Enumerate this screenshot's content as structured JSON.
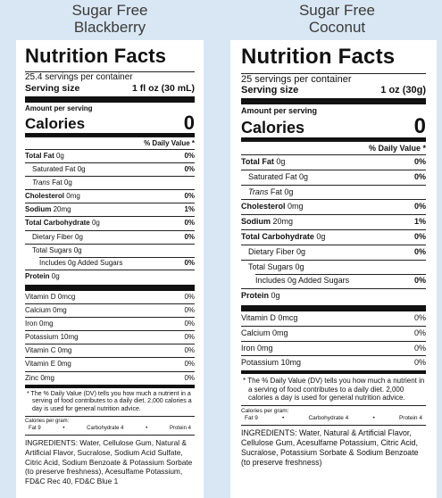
{
  "left": {
    "heading": "Sugar Free\nBlackberry",
    "heading_line1": "Sugar Free",
    "heading_line2": "Blackberry",
    "title": "Nutrition Facts",
    "servings": "25.4 servings per container",
    "serving_size_label": "Serving size",
    "serving_size_value": "1 fl oz (30 mL)",
    "amount_per_serving": "Amount per serving",
    "calories_label": "Calories",
    "calories_value": "0",
    "dv_header": "% Daily Value *",
    "rows": [
      {
        "bold": "Total Fat",
        "label": " 0g",
        "value": "0%"
      },
      {
        "label": "Saturated Fat 0g",
        "value": "0%"
      },
      {
        "italic": "Trans",
        "label": " Fat 0g",
        "value": ""
      },
      {
        "bold": "Cholesterol",
        "label": " 0mg",
        "value": "0%"
      },
      {
        "bold": "Sodium",
        "label": " 20mg",
        "value": "1%"
      },
      {
        "bold": "Total Carbohydrate",
        "label": " 0g",
        "value": "0%"
      },
      {
        "label": "Dietary Fiber 0g",
        "value": "0%"
      },
      {
        "label": "Total Sugars 0g",
        "value": ""
      },
      {
        "label": "Includes 0g Added Sugars",
        "value": "0%"
      },
      {
        "bold": "Protein",
        "label": " 0g",
        "value": ""
      }
    ],
    "vitamins": [
      {
        "label": "Vitamin D 0mcg",
        "value": "0%"
      },
      {
        "label": "Calcium 0mg",
        "value": "0%"
      },
      {
        "label": "Iron 0mg",
        "value": "0%"
      },
      {
        "label": "Potassium 10mg",
        "value": "0%"
      },
      {
        "label": "Vitamin C 0mg",
        "value": "0%"
      },
      {
        "label": "Vitamin E 0mg",
        "value": "0%"
      },
      {
        "label": "Zinc 0mg",
        "value": "0%"
      }
    ],
    "footnote": "* The % Daily Value (DV) tells you how much a nutrient in a serving of food contributes to a daily diet. 2,000 calories a day is used for general nutrition advice.",
    "calories_per_gram": "Calories per gram:",
    "fat_per_gram": "Fat 9",
    "carb_per_gram": "Carbohydrate 4",
    "protein_per_gram": "Protein 4",
    "ingredients": "INGREDIENTS: Water, Cellulose Gum, Natural & Artificial Flavor, Sucralose, Sodium Acid Sulfate, Citric Acid, Sodium Benzoate & Potassium Sorbate (to preserve freshness), Acesulfame Potassium, FD&C Rec 40, FD&C Blue 1"
  },
  "right": {
    "heading_line1": "Sugar Free",
    "heading_line2": "Coconut",
    "title": "Nutrition Facts",
    "servings": "25 servings per container",
    "serving_size_label": "Serving size",
    "serving_size_value": "1 oz (30g)",
    "amount_per_serving": "Amount per serving",
    "calories_label": "Calories",
    "calories_value": "0",
    "dv_header": "% Daily Value *",
    "rows": [
      {
        "bold": "Total Fat",
        "label": " 0g",
        "value": "0%"
      },
      {
        "label": "Saturated Fat 0g",
        "value": "0%"
      },
      {
        "italic": "Trans",
        "label": " Fat 0g",
        "value": ""
      },
      {
        "bold": "Cholesterol",
        "label": " 0mg",
        "value": "0%"
      },
      {
        "bold": "Sodium",
        "label": " 20mg",
        "value": "1%"
      },
      {
        "bold": "Total Carbohydrate",
        "label": " 0g",
        "value": "0%"
      },
      {
        "label": "Dietary Fiber 0g",
        "value": "0%"
      },
      {
        "label": "Total Sugars 0g",
        "value": ""
      },
      {
        "label": "Includes 0g Added Sugars",
        "value": "0%"
      },
      {
        "bold": "Protein",
        "label": " 0g",
        "value": ""
      }
    ],
    "vitamins": [
      {
        "label": "Vitamin D 0mcg",
        "value": "0%"
      },
      {
        "label": "Calcium 0mg",
        "value": "0%"
      },
      {
        "label": "Iron 0mg",
        "value": "0%"
      },
      {
        "label": "Potassium 10mg",
        "value": "0%"
      }
    ],
    "footnote": "* The % Daily Value (DV) tells you how much a nutrient in a serving of food contributes to a daily diet. 2,000 calories a day is used for general nutrition advice.",
    "calories_per_gram": "Calories per gram:",
    "fat_per_gram": "Fat 9",
    "carb_per_gram": "Carbohydrate 4",
    "protein_per_gram": "Protein 4",
    "ingredients": "INGREDIENTS: Water, Natural & Artificial Flavor, Cellulose Gum, Acesulfame Potassium, Citric Acid, Sucralose, Potassium Sorbate & Sodium Benzoate (to preserve freshness)"
  }
}
